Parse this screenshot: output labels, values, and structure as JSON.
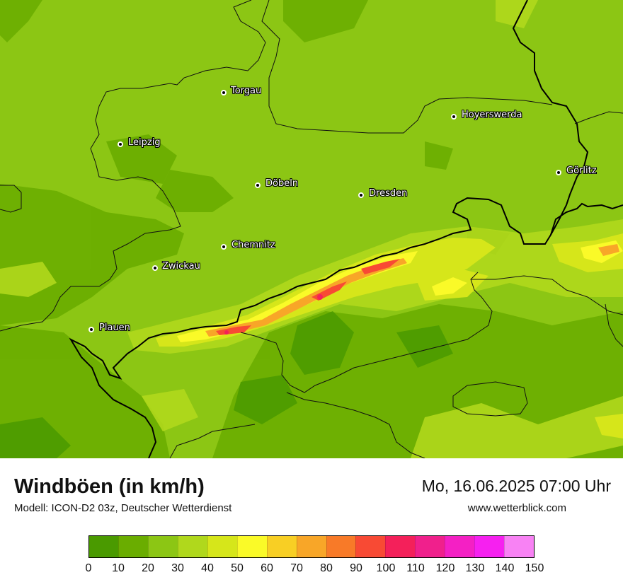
{
  "map": {
    "cities": [
      {
        "name": "Torgau"
      },
      {
        "name": "Hoyerswerda"
      },
      {
        "name": "Leipzig"
      },
      {
        "name": "Görlitz"
      },
      {
        "name": "Döbeln"
      },
      {
        "name": "Dresden"
      },
      {
        "name": "Chemnitz"
      },
      {
        "name": "Zwickau"
      },
      {
        "name": "Plauen"
      }
    ]
  },
  "footer": {
    "title": "Windböen (in km/h)",
    "subtitle": "Modell: ICON-D2 03z, Deutscher Wetterdienst",
    "datetime": "Mo, 16.06.2025 07:00 Uhr",
    "website": "www.wetterblick.com"
  },
  "legend": {
    "colors": [
      "#4a9a00",
      "#6aad00",
      "#8cc614",
      "#b0d81c",
      "#d6e61a",
      "#fafa28",
      "#f8cf24",
      "#f8a628",
      "#f87a28",
      "#f84a34",
      "#f4205a",
      "#f0208c",
      "#f420c4",
      "#f620f0",
      "#f882f4"
    ],
    "ticks": [
      "0",
      "10",
      "20",
      "30",
      "40",
      "50",
      "60",
      "70",
      "80",
      "90",
      "100",
      "110",
      "120",
      "130",
      "140",
      "150"
    ]
  }
}
